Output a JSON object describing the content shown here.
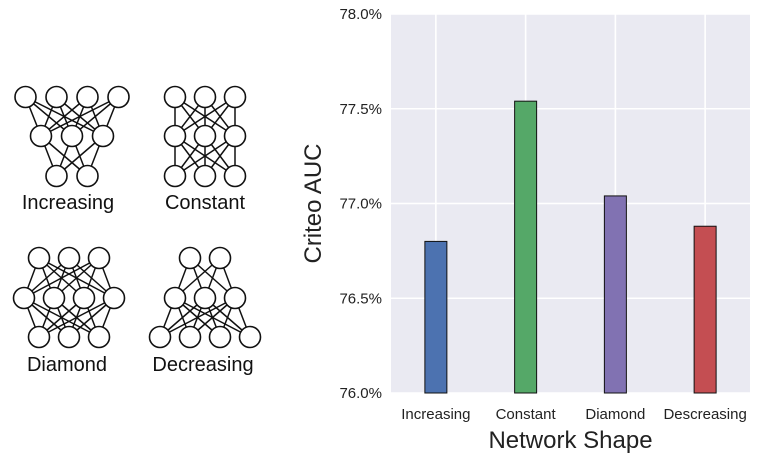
{
  "diagrams": [
    {
      "name": "increasing",
      "label": "Increasing",
      "layers": [
        4,
        3,
        2
      ]
    },
    {
      "name": "constant",
      "label": "Constant",
      "layers": [
        3,
        3,
        3
      ]
    },
    {
      "name": "diamond",
      "label": "Diamond",
      "layers": [
        3,
        4,
        3
      ]
    },
    {
      "name": "decreasing",
      "label": "Decreasing",
      "layers": [
        2,
        3,
        4
      ]
    }
  ],
  "chart_data": {
    "type": "bar",
    "categories": [
      "Increasing",
      "Constant",
      "Diamond",
      "Descreasing"
    ],
    "values": [
      76.8,
      77.54,
      77.04,
      76.88
    ],
    "colors": [
      "#4c72b0",
      "#55a868",
      "#8172b2",
      "#c44e52"
    ],
    "xlabel": "Network Shape",
    "ylabel": "Criteo AUC",
    "ylim": [
      76.0,
      78.0
    ],
    "yticks": [
      76.0,
      76.5,
      77.0,
      77.5,
      78.0
    ],
    "ytick_labels": [
      "76.0%",
      "76.5%",
      "77.0%",
      "77.5%",
      "78.0%"
    ],
    "grid": true,
    "background": "#eaeaf2"
  }
}
